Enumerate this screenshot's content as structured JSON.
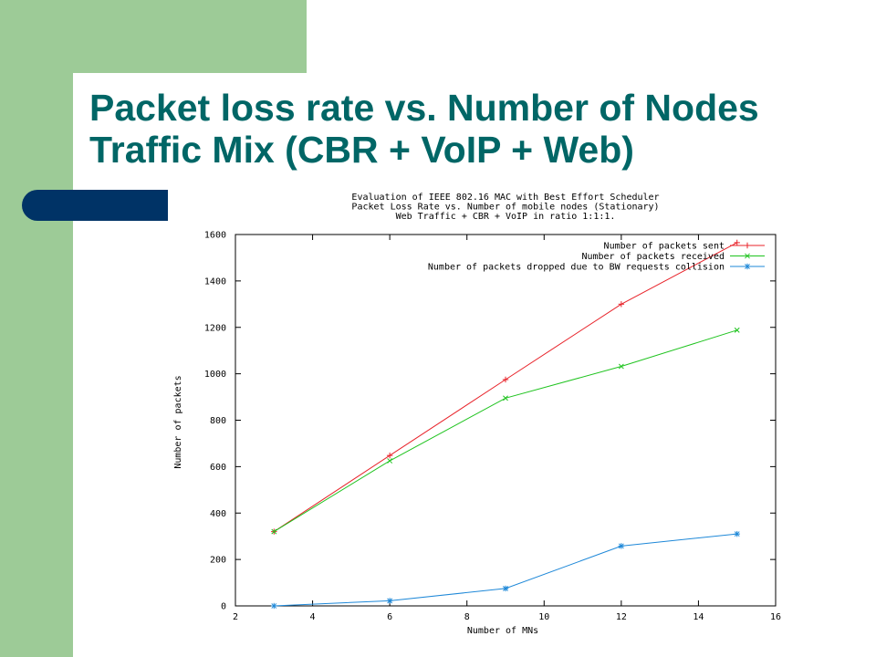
{
  "slide": {
    "title_line1": "Packet loss rate vs. Number of Nodes",
    "title_line2": "Traffic Mix (CBR + VoIP + Web)"
  },
  "colors": {
    "title": "#006666",
    "side_band": "#9dcb97",
    "accent_bar": "#003366"
  },
  "chart_data": {
    "type": "line",
    "title_lines": [
      "Evaluation of IEEE 802.16 MAC with Best Effort Scheduler",
      "Packet Loss Rate vs. Number of mobile nodes (Stationary)",
      "Web Traffic + CBR + VoIP in ratio 1:1:1."
    ],
    "xlabel": "Number of MNs",
    "ylabel": "Number of packets",
    "xlim": [
      2,
      16
    ],
    "ylim": [
      0,
      1600
    ],
    "xticks": [
      2,
      4,
      6,
      8,
      10,
      12,
      14,
      16
    ],
    "yticks": [
      0,
      200,
      400,
      600,
      800,
      1000,
      1200,
      1400,
      1600
    ],
    "grid": false,
    "legend_position": "top-right",
    "series": [
      {
        "name": "Number of packets sent",
        "color": "#e8232a",
        "marker": "plus",
        "x": [
          3,
          6,
          9,
          12,
          15
        ],
        "y": [
          320,
          648,
          975,
          1300,
          1565
        ]
      },
      {
        "name": "Number of packets received",
        "color": "#1ec31e",
        "marker": "cross",
        "x": [
          3,
          6,
          9,
          12,
          15
        ],
        "y": [
          320,
          625,
          895,
          1032,
          1188
        ]
      },
      {
        "name": "Number of packets dropped due to BW requests collision",
        "color": "#1e88d8",
        "marker": "star",
        "x": [
          3,
          6,
          9,
          12,
          15
        ],
        "y": [
          0,
          22,
          75,
          258,
          310
        ]
      }
    ]
  }
}
